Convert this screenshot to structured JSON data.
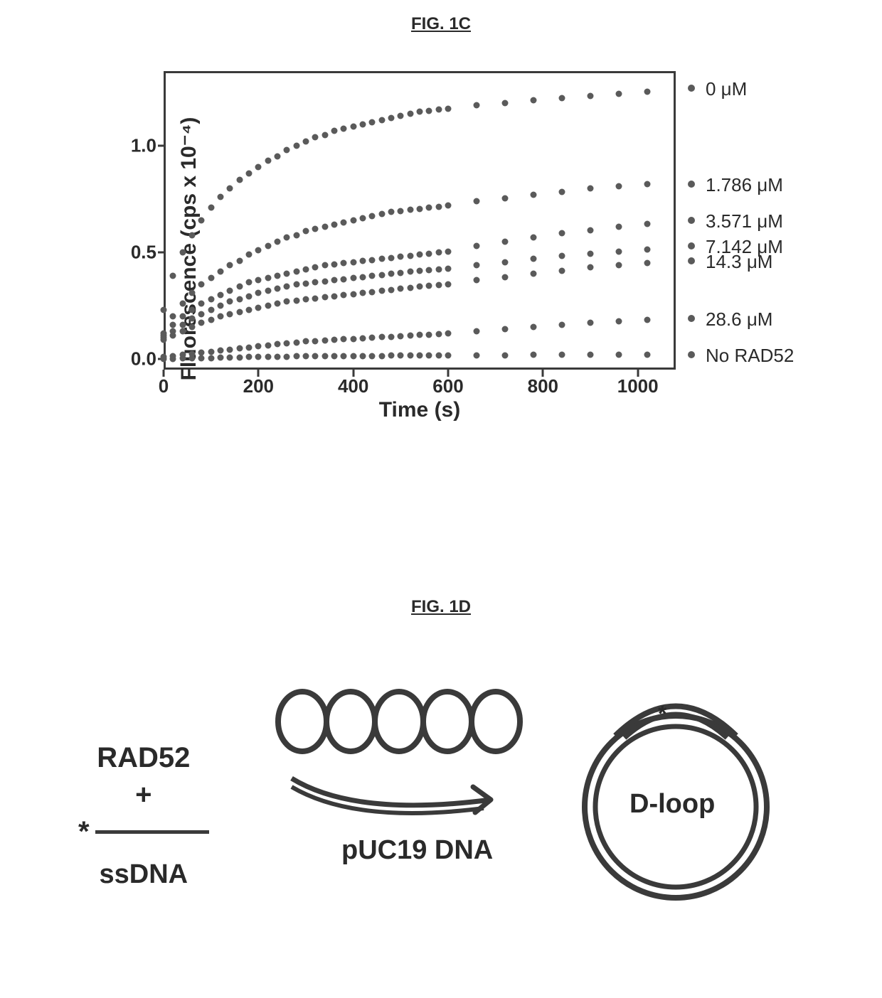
{
  "fig1c": {
    "title": "FIG. 1C",
    "chart": {
      "type": "scatter",
      "xlabel": "Time (s)",
      "ylabel": "Fluorescence (cps x 10⁻⁴)",
      "xlim": [
        0,
        1080
      ],
      "ylim": [
        -0.05,
        1.35
      ],
      "xticks": [
        0,
        200,
        400,
        600,
        800,
        1000
      ],
      "yticks": [
        0.0,
        0.5,
        1.0
      ],
      "ytick_labels": [
        "0.0",
        "0.5",
        "1.0"
      ],
      "marker_color": "#5a5a5a",
      "marker_size": 9,
      "border_color": "#3a3a3a",
      "label_fontsize": 30,
      "tick_fontsize": 26,
      "legend_fontsize": 26,
      "series": [
        {
          "label": "0 μM",
          "x": [
            0,
            20,
            40,
            60,
            80,
            100,
            120,
            140,
            160,
            180,
            200,
            220,
            240,
            260,
            280,
            300,
            320,
            340,
            360,
            380,
            400,
            420,
            440,
            460,
            480,
            500,
            520,
            540,
            560,
            580,
            600,
            660,
            720,
            780,
            840,
            900,
            960,
            1020
          ],
          "y": [
            0.23,
            0.39,
            0.5,
            0.58,
            0.65,
            0.71,
            0.76,
            0.8,
            0.84,
            0.87,
            0.9,
            0.93,
            0.95,
            0.98,
            1.0,
            1.02,
            1.04,
            1.05,
            1.07,
            1.08,
            1.09,
            1.1,
            1.11,
            1.12,
            1.13,
            1.14,
            1.15,
            1.16,
            1.165,
            1.17,
            1.175,
            1.19,
            1.2,
            1.215,
            1.225,
            1.235,
            1.245,
            1.255
          ]
        },
        {
          "label": "1.786 μM",
          "x": [
            0,
            20,
            40,
            60,
            80,
            100,
            120,
            140,
            160,
            180,
            200,
            220,
            240,
            260,
            280,
            300,
            320,
            340,
            360,
            380,
            400,
            420,
            440,
            460,
            480,
            500,
            520,
            540,
            560,
            580,
            600,
            660,
            720,
            780,
            840,
            900,
            960,
            1020
          ],
          "y": [
            0.12,
            0.2,
            0.26,
            0.31,
            0.35,
            0.38,
            0.41,
            0.44,
            0.46,
            0.49,
            0.51,
            0.53,
            0.55,
            0.57,
            0.58,
            0.6,
            0.61,
            0.62,
            0.63,
            0.64,
            0.65,
            0.66,
            0.67,
            0.68,
            0.69,
            0.695,
            0.7,
            0.705,
            0.71,
            0.715,
            0.72,
            0.74,
            0.755,
            0.77,
            0.785,
            0.8,
            0.81,
            0.82
          ]
        },
        {
          "label": "3.571 μM",
          "x": [
            0,
            20,
            40,
            60,
            80,
            100,
            120,
            140,
            160,
            180,
            200,
            220,
            240,
            260,
            280,
            300,
            320,
            340,
            360,
            380,
            400,
            420,
            440,
            460,
            480,
            500,
            520,
            540,
            560,
            580,
            600,
            660,
            720,
            780,
            840,
            900,
            960,
            1020
          ],
          "y": [
            0.11,
            0.16,
            0.2,
            0.23,
            0.26,
            0.28,
            0.3,
            0.32,
            0.34,
            0.36,
            0.37,
            0.38,
            0.39,
            0.4,
            0.41,
            0.42,
            0.43,
            0.44,
            0.445,
            0.45,
            0.455,
            0.46,
            0.465,
            0.47,
            0.475,
            0.48,
            0.485,
            0.49,
            0.495,
            0.5,
            0.505,
            0.53,
            0.55,
            0.57,
            0.59,
            0.605,
            0.62,
            0.635
          ]
        },
        {
          "label": "7.142 μM",
          "x": [
            0,
            20,
            40,
            60,
            80,
            100,
            120,
            140,
            160,
            180,
            200,
            220,
            240,
            260,
            280,
            300,
            320,
            340,
            360,
            380,
            400,
            420,
            440,
            460,
            480,
            500,
            520,
            540,
            560,
            580,
            600,
            660,
            720,
            780,
            840,
            900,
            960,
            1020
          ],
          "y": [
            0.1,
            0.13,
            0.16,
            0.19,
            0.21,
            0.23,
            0.25,
            0.27,
            0.28,
            0.295,
            0.31,
            0.32,
            0.33,
            0.34,
            0.35,
            0.355,
            0.36,
            0.365,
            0.37,
            0.375,
            0.38,
            0.385,
            0.39,
            0.395,
            0.4,
            0.405,
            0.41,
            0.415,
            0.418,
            0.42,
            0.425,
            0.44,
            0.455,
            0.47,
            0.485,
            0.495,
            0.505,
            0.515
          ]
        },
        {
          "label": "14.3 μM",
          "x": [
            0,
            20,
            40,
            60,
            80,
            100,
            120,
            140,
            160,
            180,
            200,
            220,
            240,
            260,
            280,
            300,
            320,
            340,
            360,
            380,
            400,
            420,
            440,
            460,
            480,
            500,
            520,
            540,
            560,
            580,
            600,
            660,
            720,
            780,
            840,
            900,
            960,
            1020
          ],
          "y": [
            0.09,
            0.11,
            0.13,
            0.15,
            0.17,
            0.185,
            0.2,
            0.21,
            0.22,
            0.23,
            0.24,
            0.25,
            0.26,
            0.27,
            0.275,
            0.28,
            0.285,
            0.29,
            0.295,
            0.3,
            0.305,
            0.31,
            0.315,
            0.32,
            0.325,
            0.33,
            0.335,
            0.34,
            0.343,
            0.346,
            0.35,
            0.37,
            0.385,
            0.4,
            0.415,
            0.43,
            0.44,
            0.45
          ]
        },
        {
          "label": "28.6 μM",
          "x": [
            0,
            20,
            40,
            60,
            80,
            100,
            120,
            140,
            160,
            180,
            200,
            220,
            240,
            260,
            280,
            300,
            320,
            340,
            360,
            380,
            400,
            420,
            440,
            460,
            480,
            500,
            520,
            540,
            560,
            580,
            600,
            660,
            720,
            780,
            840,
            900,
            960,
            1020
          ],
          "y": [
            0.01,
            0.015,
            0.02,
            0.025,
            0.03,
            0.035,
            0.04,
            0.045,
            0.05,
            0.055,
            0.06,
            0.065,
            0.07,
            0.075,
            0.078,
            0.082,
            0.085,
            0.088,
            0.09,
            0.093,
            0.095,
            0.098,
            0.1,
            0.103,
            0.105,
            0.108,
            0.11,
            0.113,
            0.115,
            0.118,
            0.12,
            0.13,
            0.14,
            0.15,
            0.16,
            0.17,
            0.178,
            0.185
          ]
        },
        {
          "label": "No RAD52",
          "x": [
            0,
            20,
            40,
            60,
            80,
            100,
            120,
            140,
            160,
            180,
            200,
            220,
            240,
            260,
            280,
            300,
            320,
            340,
            360,
            380,
            400,
            420,
            440,
            460,
            480,
            500,
            520,
            540,
            560,
            580,
            600,
            660,
            720,
            780,
            840,
            900,
            960,
            1020
          ],
          "y": [
            0,
            0,
            0.002,
            0.003,
            0.004,
            0.005,
            0.006,
            0.007,
            0.008,
            0.009,
            0.01,
            0.01,
            0.011,
            0.011,
            0.012,
            0.012,
            0.013,
            0.013,
            0.014,
            0.014,
            0.015,
            0.015,
            0.015,
            0.015,
            0.016,
            0.016,
            0.016,
            0.016,
            0.017,
            0.017,
            0.017,
            0.018,
            0.018,
            0.019,
            0.019,
            0.02,
            0.02,
            0.02
          ]
        }
      ],
      "legend_y_positions": [
        1.27,
        0.82,
        0.65,
        0.53,
        0.46,
        0.19,
        0.02
      ]
    }
  },
  "fig1d": {
    "title": "FIG. 1D",
    "left_label_1": "RAD52",
    "left_label_plus": "+",
    "left_label_asterisk": "*",
    "left_label_ssdna": "ssDNA",
    "arrow_label": "pUC19 DNA",
    "product_label": "D-loop",
    "stroke_color": "#3a3a3a",
    "stroke_width": 7
  }
}
